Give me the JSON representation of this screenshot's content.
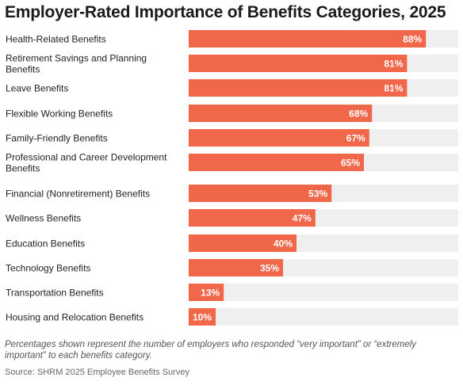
{
  "chart_data": {
    "type": "bar",
    "orientation": "horizontal",
    "title": "Employer-Rated Importance of Benefits Categories, 2025",
    "categories": [
      "Health-Related Benefits",
      "Retirement Savings and Planning Benefits",
      "Leave Benefits",
      "Flexible Working Benefits",
      "Family-Friendly Benefits",
      "Professional and Career Development Benefits",
      "Financial (Nonretirement) Benefits",
      "Wellness Benefits",
      "Education Benefits",
      "Technology Benefits",
      "Transportation Benefits",
      "Housing and Relocation Benefits"
    ],
    "values": [
      88,
      81,
      81,
      68,
      67,
      65,
      53,
      47,
      40,
      35,
      13,
      10
    ],
    "value_labels": [
      "88%",
      "81%",
      "81%",
      "68%",
      "67%",
      "65%",
      "53%",
      "47%",
      "40%",
      "35%",
      "13%",
      "10%"
    ],
    "xlim": [
      0,
      100
    ],
    "unit": "%",
    "grid": false,
    "legend": "none",
    "colors": {
      "bar": "#f0674a",
      "track": "#efefef",
      "value_label": "#ffffff"
    }
  },
  "footnote": "Percentages shown represent the number of employers who responded “very important” or “extremely important” to each benefits category.",
  "source": "Source: SHRM 2025 Employee Benefits Survey"
}
